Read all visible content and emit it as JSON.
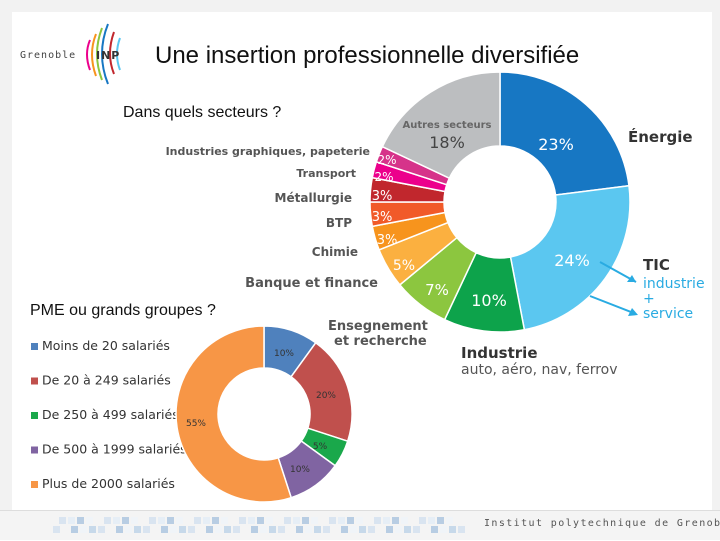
{
  "slide": {
    "title": "Une insertion professionnelle diversifiée",
    "question_sectors": "Dans quels secteurs ?",
    "question_size": "PME ou grands groupes ?",
    "logo_text": "Grenoble",
    "logo_suffix": "INP",
    "institution": "Institut polytechnique de Grenoble"
  },
  "chart_data": [
    {
      "type": "pie",
      "variant": "donut",
      "slices": [
        {
          "label": "Énergie",
          "value": 23,
          "pct_label": "23%",
          "color": "#1777c3"
        },
        {
          "label": "TIC",
          "value": 24,
          "pct_label": "24%",
          "color": "#5bc7f0",
          "sub": [
            "industrie",
            "+",
            "service"
          ]
        },
        {
          "label": "Industrie",
          "value": 10,
          "pct_label": "10%",
          "color": "#0da34b",
          "sub": [
            "auto, aéro, nav, ferrov"
          ]
        },
        {
          "label": "Enseignement et recherche",
          "value": 7,
          "pct_label": "7%",
          "color": "#8cc63f"
        },
        {
          "label": "Banque et finance",
          "value": 5,
          "pct_label": "5%",
          "color": "#fbb040"
        },
        {
          "label": "Chimie",
          "value": 3,
          "pct_label": "3%",
          "color": "#f7941d"
        },
        {
          "label": "BTP",
          "value": 3,
          "pct_label": "3%",
          "color": "#f15a29"
        },
        {
          "label": "Métallurgie",
          "value": 3,
          "pct_label": "3%",
          "color": "#c1272d"
        },
        {
          "label": "Transport",
          "value": 2,
          "pct_label": "2%",
          "color": "#ec008c"
        },
        {
          "label": "Industries graphiques, papeterie",
          "value": 2,
          "pct_label": "2%",
          "color": "#d6338a"
        },
        {
          "label": "Autres secteurs",
          "value": 18,
          "pct_label": "18%",
          "color": "#bcbec0"
        }
      ],
      "teal_extra": {
        "label": "",
        "value": 0
      }
    },
    {
      "type": "pie",
      "variant": "donut",
      "slices": [
        {
          "label": "Moins de 20 salariés",
          "value": 10,
          "pct_label": "10%",
          "color": "#4f81bd"
        },
        {
          "label": "De 20 à 249 salariés",
          "value": 20,
          "pct_label": "20%",
          "color": "#c0504d"
        },
        {
          "label": "De 250 à 499 salariés",
          "value": 5,
          "pct_label": "5%",
          "color": "#1aa84b"
        },
        {
          "label": "De 500 à 1999 salariés",
          "value": 10,
          "pct_label": "10%",
          "color": "#8064a2"
        },
        {
          "label": "Plus de 2000 salariés",
          "value": 55,
          "pct_label": "55%",
          "color": "#f79646"
        }
      ],
      "legend_placement": "left"
    }
  ]
}
